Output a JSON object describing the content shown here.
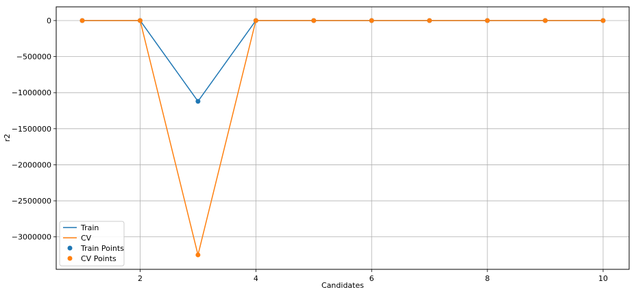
{
  "chart_data": {
    "type": "line",
    "title": "",
    "xlabel": "Candidates",
    "ylabel": "r2",
    "x": [
      1,
      2,
      3,
      4,
      5,
      6,
      7,
      8,
      9,
      10
    ],
    "xlim": [
      0.55,
      10.45
    ],
    "ylim": [
      -3450000,
      190000
    ],
    "xticks": [
      2,
      4,
      6,
      8,
      10
    ],
    "yticks": [
      0,
      -500000,
      -1000000,
      -1500000,
      -2000000,
      -2500000,
      -3000000
    ],
    "grid": true,
    "legend_position": "lower-left",
    "series": [
      {
        "name": "Train",
        "kind": "line",
        "color": "#1f77b4",
        "values": [
          0,
          0,
          -1120000,
          0,
          0,
          0,
          0,
          0,
          0,
          0
        ]
      },
      {
        "name": "CV",
        "kind": "line",
        "color": "#ff7f0e",
        "values": [
          0,
          0,
          -3250000,
          0,
          0,
          0,
          0,
          0,
          0,
          0
        ]
      },
      {
        "name": "Train Points",
        "kind": "scatter",
        "color": "#1f77b4",
        "values": [
          0,
          0,
          -1120000,
          0,
          0,
          0,
          0,
          0,
          0,
          0
        ]
      },
      {
        "name": "CV Points",
        "kind": "scatter",
        "color": "#ff7f0e",
        "values": [
          0,
          0,
          -3250000,
          0,
          0,
          0,
          0,
          0,
          0,
          0
        ]
      }
    ]
  }
}
